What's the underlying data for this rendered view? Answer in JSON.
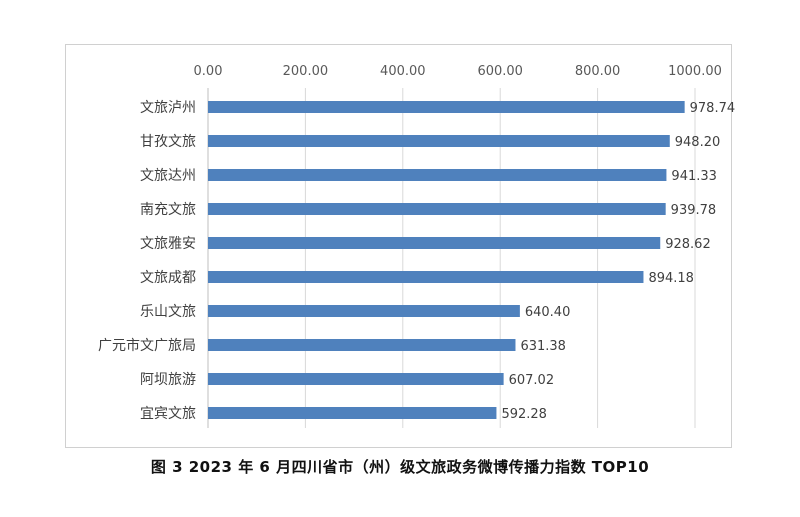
{
  "chart_data": {
    "type": "bar",
    "orientation": "horizontal",
    "axis_position": "top",
    "categories": [
      "文旅泸州",
      "甘孜文旅",
      "文旅达州",
      "南充文旅",
      "文旅雅安",
      "文旅成都",
      "乐山文旅",
      "广元市文广旅局",
      "阿坝旅游",
      "宜宾文旅"
    ],
    "values": [
      978.74,
      948.2,
      941.33,
      939.78,
      928.62,
      894.18,
      640.4,
      631.38,
      607.02,
      592.28
    ],
    "value_labels": [
      "978.74",
      "948.20",
      "941.33",
      "939.78",
      "928.62",
      "894.18",
      "640.40",
      "631.38",
      "607.02",
      "592.28"
    ],
    "xlim": [
      0,
      1000
    ],
    "ticks": [
      0,
      200,
      400,
      600,
      800,
      1000
    ],
    "tick_labels": [
      "0.00",
      "200.00",
      "400.00",
      "600.00",
      "800.00",
      "1000.00"
    ],
    "grid": true,
    "bar_color": "#4f81bd",
    "title": ""
  },
  "caption": "图 3   2023 年 6 月四川省市（州）级文旅政务微博传播力指数 TOP10"
}
